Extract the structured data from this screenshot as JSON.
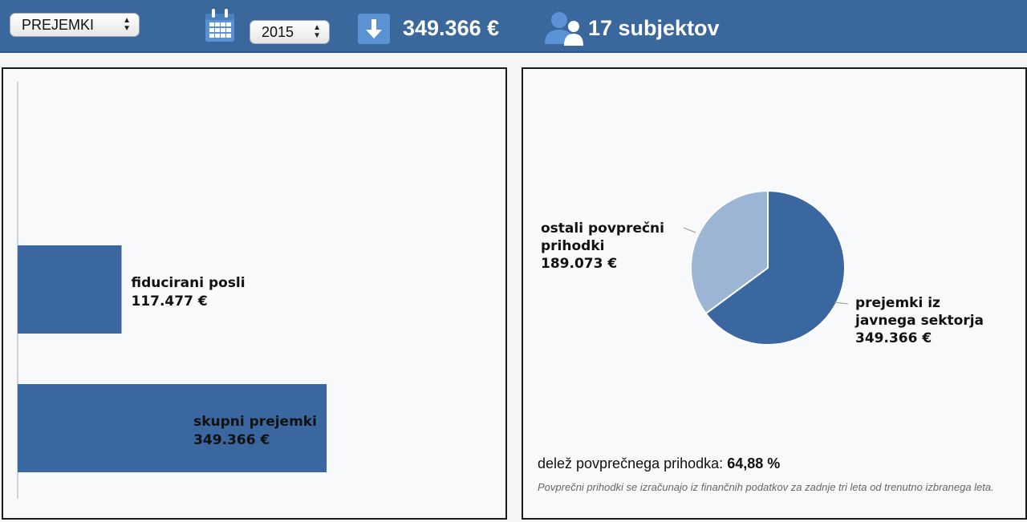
{
  "header": {
    "category_select": {
      "value": "PREJEMKI"
    },
    "year_select": {
      "value": "2015"
    },
    "total_amount": "349.366 €",
    "subjects": "17 subjektov",
    "colors": {
      "bar": "#3a679c",
      "accent": "#5b92d3"
    }
  },
  "bar_panel": {
    "chart_data": {
      "type": "bar",
      "orientation": "horizontal",
      "categories": [
        "fiducirani posli",
        "skupni prejemki"
      ],
      "values": [
        117477,
        349366
      ],
      "value_labels": [
        "117.477 €",
        "349.366 €"
      ],
      "xlim": [
        0,
        440000
      ],
      "color": "#3a67a0"
    }
  },
  "pie_panel": {
    "chart_data": {
      "type": "pie",
      "slices": [
        {
          "label_lines": [
            "prejemki iz",
            "javnega sektorja"
          ],
          "value": 349366,
          "value_label": "349.366 €",
          "color": "#3a67a0"
        },
        {
          "label_lines": [
            "ostali povprečni",
            "prihodki"
          ],
          "value": 189073,
          "value_label": "189.073 €",
          "color": "#9db5d4"
        }
      ]
    },
    "share_label": "delež povprečnega prihodka:",
    "share_value": "64,88 %",
    "footnote": "Povprečni prihodki se izračunajo iz finančnih podatkov za zadnje tri leta od trenutno izbranega leta."
  }
}
